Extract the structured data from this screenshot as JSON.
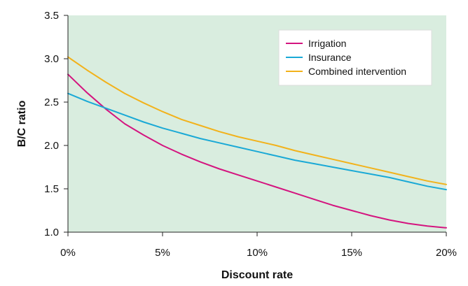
{
  "chart_data": {
    "type": "line",
    "xlabel": "Discount rate",
    "ylabel": "B/C ratio",
    "xlim": [
      0,
      20
    ],
    "ylim": [
      1.0,
      3.5
    ],
    "x_ticks": [
      0,
      5,
      10,
      15,
      20
    ],
    "x_tick_labels": [
      "0%",
      "5%",
      "10%",
      "15%",
      "20%"
    ],
    "y_ticks": [
      1.0,
      1.5,
      2.0,
      2.5,
      3.0,
      3.5
    ],
    "y_tick_labels": [
      "1.0",
      "1.5",
      "2.0",
      "2.5",
      "3.0",
      "3.5"
    ],
    "grid": false,
    "legend_position": "top-right",
    "plot_background": "#d9eddf",
    "x": [
      0,
      1,
      2,
      3,
      4,
      5,
      6,
      7,
      8,
      9,
      10,
      11,
      12,
      13,
      14,
      15,
      16,
      17,
      18,
      19,
      20
    ],
    "series": [
      {
        "name": "Irrigation",
        "color": "#d4147f",
        "values": [
          2.82,
          2.61,
          2.42,
          2.25,
          2.12,
          2.0,
          1.9,
          1.81,
          1.73,
          1.66,
          1.59,
          1.52,
          1.45,
          1.38,
          1.31,
          1.25,
          1.19,
          1.14,
          1.1,
          1.07,
          1.05
        ]
      },
      {
        "name": "Insurance",
        "color": "#1aa9d6",
        "values": [
          2.6,
          2.51,
          2.43,
          2.35,
          2.27,
          2.2,
          2.14,
          2.08,
          2.03,
          1.98,
          1.93,
          1.88,
          1.83,
          1.79,
          1.75,
          1.71,
          1.67,
          1.63,
          1.58,
          1.53,
          1.49
        ]
      },
      {
        "name": "Combined intervention",
        "color": "#f2b21b",
        "values": [
          3.02,
          2.87,
          2.73,
          2.6,
          2.49,
          2.39,
          2.3,
          2.23,
          2.16,
          2.1,
          2.05,
          2.0,
          1.94,
          1.89,
          1.84,
          1.79,
          1.74,
          1.69,
          1.64,
          1.59,
          1.55
        ]
      }
    ]
  }
}
